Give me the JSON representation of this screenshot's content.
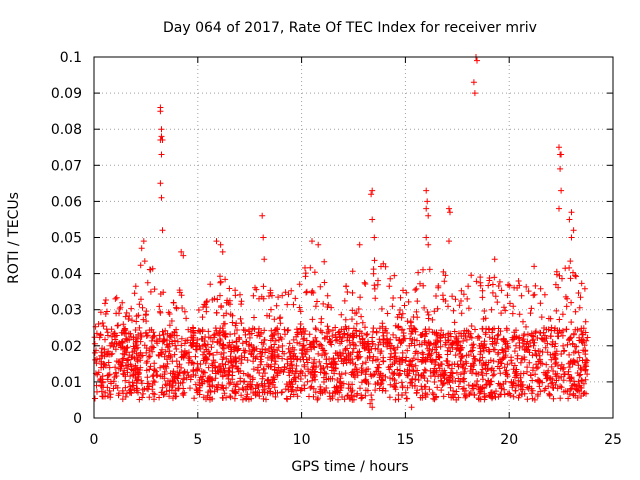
{
  "chart_data": {
    "type": "scatter",
    "title": "Day 064 of 2017, Rate Of TEC Index for receiver mriv",
    "xlabel": "GPS time / hours",
    "ylabel": "ROTI / TECUs",
    "xlim": [
      0,
      25
    ],
    "ylim": [
      0,
      0.1
    ],
    "xticks": [
      "0",
      "5",
      "10",
      "15",
      "20",
      "25"
    ],
    "xtick_values": [
      0,
      5,
      10,
      15,
      20,
      25
    ],
    "yticks": [
      "0",
      "0.01",
      "0.02",
      "0.03",
      "0.04",
      "0.05",
      "0.06",
      "0.07",
      "0.08",
      "0.09",
      "0.1"
    ],
    "ytick_values": [
      0,
      0.01,
      0.02,
      0.03,
      0.04,
      0.05,
      0.06,
      0.07,
      0.08,
      0.09,
      0.1
    ],
    "grid": true,
    "marker": "+",
    "color": "#ff0000",
    "series": [
      {
        "name": "ROTI",
        "x_range_hours": [
          0,
          23.8
        ],
        "baseline_min": 0.005,
        "bulk_max": 0.025,
        "envelope": [
          [
            0.0,
            0.028
          ],
          [
            0.5,
            0.033
          ],
          [
            1.0,
            0.04
          ],
          [
            1.5,
            0.036
          ],
          [
            2.0,
            0.042
          ],
          [
            2.5,
            0.045
          ],
          [
            3.0,
            0.042
          ],
          [
            3.5,
            0.033
          ],
          [
            4.0,
            0.039
          ],
          [
            4.5,
            0.031
          ],
          [
            5.0,
            0.032
          ],
          [
            5.5,
            0.037
          ],
          [
            6.0,
            0.041
          ],
          [
            6.5,
            0.038
          ],
          [
            7.0,
            0.037
          ],
          [
            7.5,
            0.036
          ],
          [
            8.0,
            0.039
          ],
          [
            8.5,
            0.037
          ],
          [
            9.0,
            0.034
          ],
          [
            9.5,
            0.036
          ],
          [
            10.0,
            0.04
          ],
          [
            10.5,
            0.045
          ],
          [
            11.0,
            0.045
          ],
          [
            11.5,
            0.04
          ],
          [
            12.0,
            0.034
          ],
          [
            12.5,
            0.043
          ],
          [
            13.0,
            0.038
          ],
          [
            13.5,
            0.045
          ],
          [
            14.0,
            0.044
          ],
          [
            14.5,
            0.04
          ],
          [
            15.0,
            0.036
          ],
          [
            15.5,
            0.039
          ],
          [
            16.0,
            0.045
          ],
          [
            16.5,
            0.038
          ],
          [
            17.0,
            0.042
          ],
          [
            17.5,
            0.036
          ],
          [
            18.0,
            0.038
          ],
          [
            18.5,
            0.044
          ],
          [
            19.0,
            0.041
          ],
          [
            19.5,
            0.038
          ],
          [
            20.0,
            0.037
          ],
          [
            20.5,
            0.039
          ],
          [
            21.0,
            0.039
          ],
          [
            21.5,
            0.037
          ],
          [
            22.0,
            0.04
          ],
          [
            22.5,
            0.043
          ],
          [
            23.0,
            0.045
          ],
          [
            23.5,
            0.038
          ],
          [
            23.8,
            0.035
          ]
        ],
        "outliers": [
          [
            3.2,
            0.086
          ],
          [
            3.2,
            0.085
          ],
          [
            3.25,
            0.08
          ],
          [
            3.25,
            0.078
          ],
          [
            3.2,
            0.077
          ],
          [
            3.3,
            0.077
          ],
          [
            3.25,
            0.073
          ],
          [
            3.2,
            0.065
          ],
          [
            3.25,
            0.061
          ],
          [
            3.3,
            0.052
          ],
          [
            2.4,
            0.049
          ],
          [
            2.3,
            0.047
          ],
          [
            4.2,
            0.046
          ],
          [
            4.3,
            0.045
          ],
          [
            5.9,
            0.049
          ],
          [
            6.1,
            0.048
          ],
          [
            6.2,
            0.046
          ],
          [
            8.1,
            0.056
          ],
          [
            8.15,
            0.05
          ],
          [
            8.2,
            0.044
          ],
          [
            10.5,
            0.049
          ],
          [
            10.8,
            0.048
          ],
          [
            13.4,
            0.063
          ],
          [
            13.35,
            0.062
          ],
          [
            13.4,
            0.055
          ],
          [
            13.5,
            0.05
          ],
          [
            12.8,
            0.048
          ],
          [
            16.0,
            0.063
          ],
          [
            16.05,
            0.06
          ],
          [
            16.0,
            0.058
          ],
          [
            16.1,
            0.056
          ],
          [
            16.0,
            0.05
          ],
          [
            16.1,
            0.048
          ],
          [
            17.1,
            0.058
          ],
          [
            17.15,
            0.057
          ],
          [
            17.1,
            0.049
          ],
          [
            18.4,
            0.1
          ],
          [
            18.45,
            0.099
          ],
          [
            18.3,
            0.093
          ],
          [
            18.35,
            0.09
          ],
          [
            19.3,
            0.044
          ],
          [
            21.2,
            0.042
          ],
          [
            22.4,
            0.075
          ],
          [
            22.45,
            0.073
          ],
          [
            22.5,
            0.073
          ],
          [
            22.45,
            0.069
          ],
          [
            22.5,
            0.063
          ],
          [
            22.4,
            0.058
          ],
          [
            23.0,
            0.057
          ],
          [
            22.9,
            0.055
          ],
          [
            23.1,
            0.052
          ],
          [
            23.0,
            0.05
          ],
          [
            13.3,
            0.004
          ],
          [
            13.4,
            0.003
          ],
          [
            15.3,
            0.003
          ]
        ]
      }
    ]
  }
}
